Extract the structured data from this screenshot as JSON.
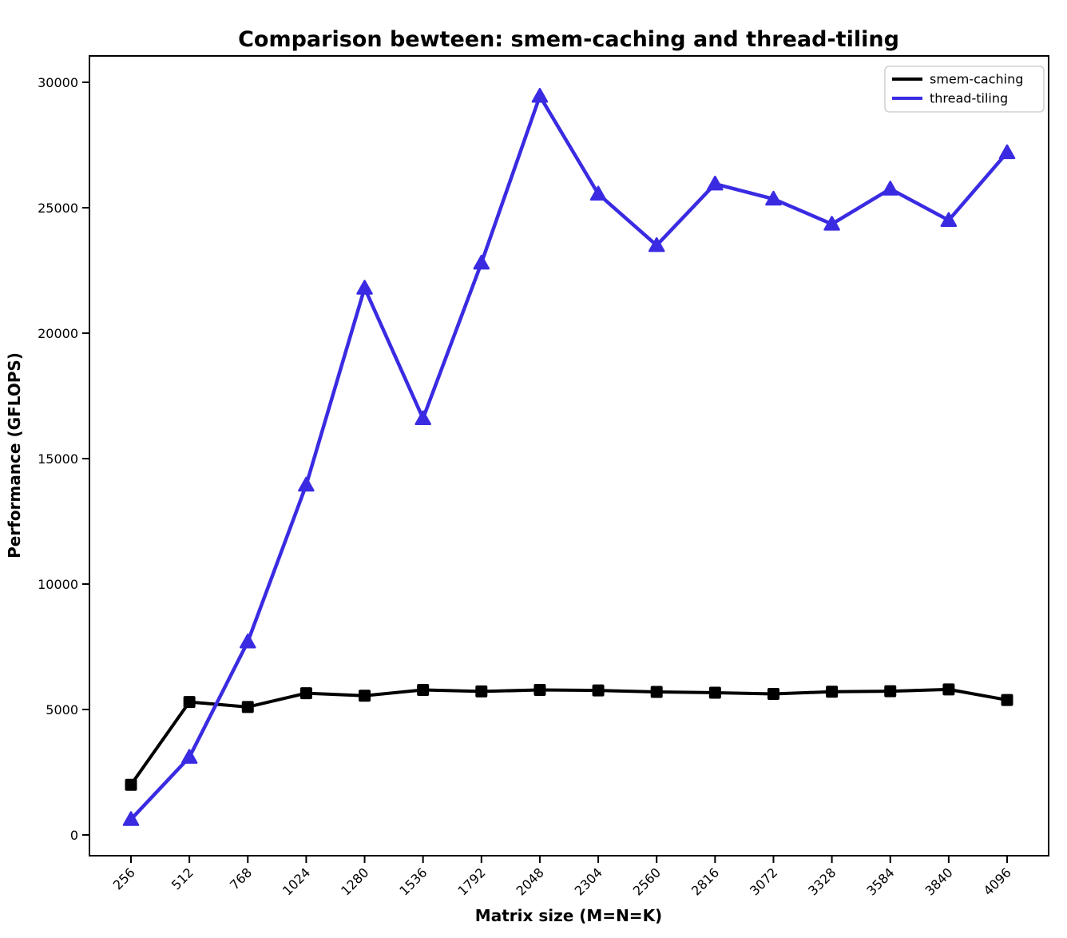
{
  "chart_data": {
    "type": "line",
    "title": "Comparison bewteen: smem-caching and thread-tiling",
    "xlabel": "Matrix size (M=N=K)",
    "ylabel": "Performance (GFLOPS)",
    "categories": [
      256,
      512,
      768,
      1024,
      1280,
      1536,
      1792,
      2048,
      2304,
      2560,
      2816,
      3072,
      3328,
      3584,
      3840,
      4096
    ],
    "series": [
      {
        "name": "smem-caching",
        "color": "#000000",
        "marker": "square",
        "line_width": 4,
        "values": [
          2000,
          5300,
          5100,
          5650,
          5550,
          5780,
          5720,
          5780,
          5760,
          5700,
          5670,
          5620,
          5710,
          5730,
          5800,
          5380
        ]
      },
      {
        "name": "thread-tiling",
        "color": "#3A2BE2",
        "marker": "triangle",
        "line_width": 4.5,
        "values": [
          620,
          3100,
          7700,
          13950,
          21800,
          16600,
          22800,
          29450,
          25550,
          23500,
          25950,
          25350,
          24350,
          25750,
          24500,
          27200
        ]
      }
    ],
    "yticks": [
      0,
      5000,
      10000,
      15000,
      20000,
      25000,
      30000
    ],
    "ylim": [
      -850,
      31050
    ],
    "xtick_rotation": 45,
    "grid": false,
    "legend_position": "upper right",
    "legend": [
      "smem-caching",
      "thread-tiling"
    ]
  },
  "style": {
    "axis_color": "#000000",
    "background": "#ffffff",
    "legend_border": "#c8c8c8",
    "legend_fill": "#ffffff"
  }
}
